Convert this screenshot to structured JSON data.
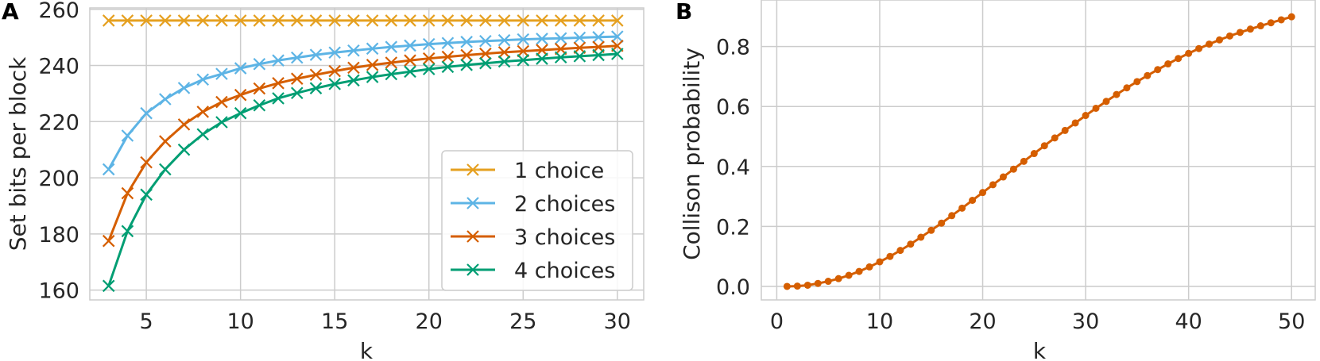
{
  "chart_data": [
    {
      "panel": "A",
      "type": "line",
      "xlabel": "k",
      "ylabel": "Set bits per block",
      "xlim": [
        2,
        31.4
      ],
      "ylim": [
        156.5,
        260.5
      ],
      "xticks": [
        5,
        10,
        15,
        20,
        25,
        30
      ],
      "yticks": [
        160,
        180,
        200,
        220,
        240,
        260
      ],
      "grid": true,
      "marker": "x",
      "legend": {
        "position": "lower-right",
        "entries": [
          "1 choice",
          "2 choices",
          "3 choices",
          "4 choices"
        ]
      },
      "x": [
        3,
        4,
        5,
        6,
        7,
        8,
        9,
        10,
        11,
        12,
        13,
        14,
        15,
        16,
        17,
        18,
        19,
        20,
        21,
        22,
        23,
        24,
        25,
        26,
        27,
        28,
        29,
        30
      ],
      "series": [
        {
          "name": "1 choice",
          "color": "#e5a020",
          "values": [
            256,
            256,
            256,
            256,
            256,
            256,
            256,
            256,
            256,
            256,
            256,
            256,
            256,
            256,
            256,
            256,
            256,
            256,
            256,
            256,
            256,
            256,
            256,
            256,
            256,
            256,
            256,
            256
          ]
        },
        {
          "name": "2 choices",
          "color": "#5db4e5",
          "values": [
            203,
            215,
            223,
            228,
            232,
            235,
            237,
            239,
            240.5,
            241.8,
            242.8,
            243.8,
            244.6,
            245.3,
            246,
            246.6,
            247.1,
            247.6,
            248,
            248.4,
            248.7,
            249,
            249.3,
            249.5,
            249.7,
            249.9,
            250.1,
            250.3
          ]
        },
        {
          "name": "3 choices",
          "color": "#d55e00",
          "values": [
            177.5,
            194.5,
            205.5,
            213,
            219,
            223.5,
            227,
            229.5,
            231.8,
            233.7,
            235.3,
            236.7,
            238,
            239.2,
            240.2,
            241,
            241.8,
            242.5,
            243.1,
            243.7,
            244.2,
            244.7,
            245.1,
            245.5,
            245.9,
            246.3,
            246.6,
            247
          ]
        },
        {
          "name": "4 choices",
          "color": "#009e73",
          "values": [
            161.5,
            181,
            194,
            203,
            210,
            215.5,
            219.8,
            223,
            225.8,
            228.3,
            230.2,
            231.9,
            233.4,
            234.7,
            235.9,
            236.9,
            237.8,
            238.7,
            239.5,
            240.2,
            240.8,
            241.4,
            241.9,
            242.4,
            242.9,
            243.3,
            243.7,
            244.1
          ]
        }
      ]
    },
    {
      "panel": "B",
      "type": "line",
      "xlabel": "k",
      "ylabel": "Collison probability",
      "xlim": [
        -1.5,
        52.3
      ],
      "ylim": [
        -0.045,
        0.955
      ],
      "xticks": [
        0,
        10,
        20,
        30,
        40,
        50
      ],
      "yticks": [
        0.0,
        0.2,
        0.4,
        0.6,
        0.8
      ],
      "ytick_labels": [
        "0.0",
        "0.2",
        "0.4",
        "0.6",
        "0.8"
      ],
      "grid": true,
      "marker": "circle",
      "color": "#d55e00",
      "x": [
        1,
        2,
        3,
        4,
        5,
        6,
        7,
        8,
        9,
        10,
        11,
        12,
        13,
        14,
        15,
        16,
        17,
        18,
        19,
        20,
        21,
        22,
        23,
        24,
        25,
        26,
        27,
        28,
        29,
        30,
        31,
        32,
        33,
        34,
        35,
        36,
        37,
        38,
        39,
        40,
        41,
        42,
        43,
        44,
        45,
        46,
        47,
        48,
        49,
        50
      ],
      "values": [
        0.0,
        0.001,
        0.004,
        0.01,
        0.017,
        0.026,
        0.037,
        0.05,
        0.065,
        0.082,
        0.1,
        0.12,
        0.141,
        0.164,
        0.187,
        0.211,
        0.236,
        0.261,
        0.287,
        0.313,
        0.339,
        0.365,
        0.391,
        0.417,
        0.443,
        0.469,
        0.495,
        0.52,
        0.545,
        0.57,
        0.594,
        0.617,
        0.64,
        0.662,
        0.683,
        0.703,
        0.723,
        0.742,
        0.76,
        0.777,
        0.793,
        0.808,
        0.822,
        0.835,
        0.847,
        0.858,
        0.869,
        0.879,
        0.889,
        0.899
      ]
    }
  ]
}
